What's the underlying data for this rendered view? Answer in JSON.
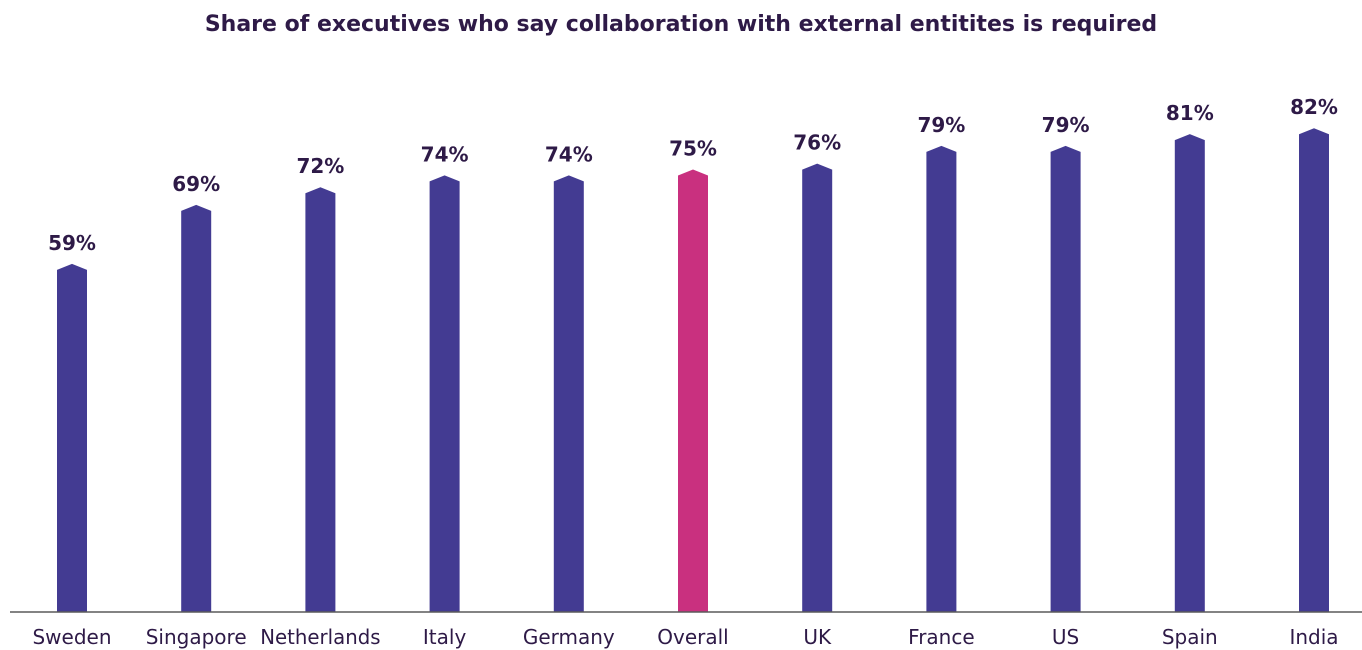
{
  "chart_data": {
    "type": "bar",
    "title": "Share of executives who say collaboration with external entitites is required",
    "xlabel": "",
    "ylabel": "",
    "categories": [
      "Sweden",
      "Singapore",
      "Netherlands",
      "Italy",
      "Germany",
      "Overall",
      "UK",
      "France",
      "US",
      "Spain",
      "India"
    ],
    "values": [
      59,
      69,
      72,
      74,
      74,
      75,
      76,
      79,
      79,
      81,
      82
    ],
    "value_labels": [
      "59%",
      "69%",
      "72%",
      "74%",
      "74%",
      "75%",
      "76%",
      "79%",
      "79%",
      "81%",
      "82%"
    ],
    "highlight_category": "Overall",
    "ylim": [
      0,
      100
    ],
    "grid": false,
    "legend": "none",
    "colors": {
      "bar": "#433b92",
      "highlight": "#c9307f",
      "text": "#2e1a47",
      "axis": "#5a5a5a"
    }
  }
}
